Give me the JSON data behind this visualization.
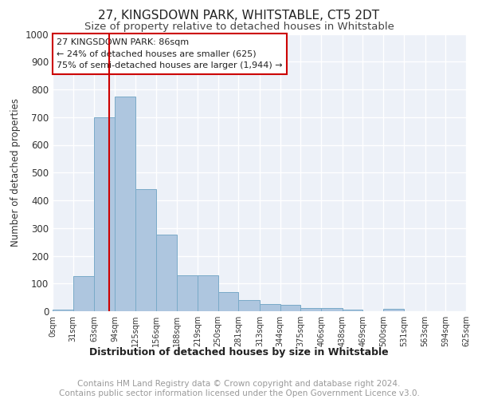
{
  "title": "27, KINGSDOWN PARK, WHITSTABLE, CT5 2DT",
  "subtitle": "Size of property relative to detached houses in Whitstable",
  "xlabel_bottom": "Distribution of detached houses by size in Whitstable",
  "ylabel": "Number of detached properties",
  "bin_edges": [
    0,
    31,
    63,
    94,
    125,
    156,
    188,
    219,
    250,
    281,
    313,
    344,
    375,
    406,
    438,
    469,
    500,
    531,
    563,
    594,
    625
  ],
  "bar_values": [
    5,
    128,
    700,
    775,
    440,
    275,
    130,
    130,
    70,
    40,
    25,
    22,
    12,
    12,
    5,
    0,
    10,
    0,
    0,
    0
  ],
  "bar_color": "#aec6df",
  "bar_edgecolor": "#7aaac8",
  "vline_x": 86,
  "vline_color": "#cc0000",
  "annotation_text": "27 KINGSDOWN PARK: 86sqm\n← 24% of detached houses are smaller (625)\n75% of semi-detached houses are larger (1,944) →",
  "annotation_box_color": "#cc0000",
  "ylim": [
    0,
    1000
  ],
  "yticks": [
    0,
    100,
    200,
    300,
    400,
    500,
    600,
    700,
    800,
    900,
    1000
  ],
  "background_color": "#edf1f8",
  "grid_color": "#ffffff",
  "footer_text": "Contains HM Land Registry data © Crown copyright and database right 2024.\nContains public sector information licensed under the Open Government Licence v3.0.",
  "title_fontsize": 11,
  "subtitle_fontsize": 9.5,
  "footer_fontsize": 7.5,
  "annotation_fontsize": 8,
  "ylabel_fontsize": 8.5,
  "xlabel_bottom_fontsize": 9,
  "ytick_fontsize": 8.5,
  "xtick_fontsize": 7
}
